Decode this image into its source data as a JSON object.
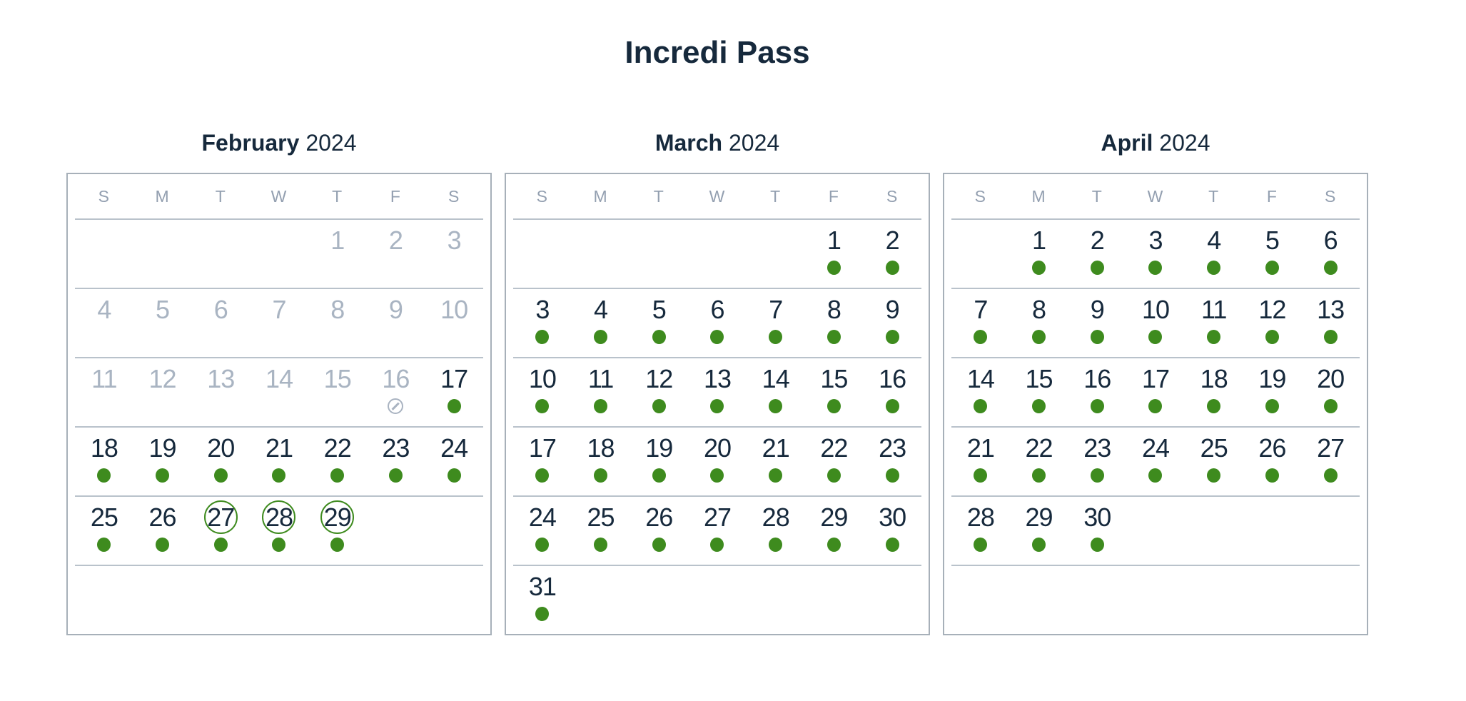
{
  "title": "Incredi Pass",
  "colors": {
    "available_green": "#3e8b1e",
    "text_navy": "#16293c",
    "disabled_gray": "#a9b4c2",
    "weekday_gray": "#93a0b0",
    "box_border_gray": "#a7b0b9",
    "divider_gray": "#b9c2cb"
  },
  "weekday_headers": [
    "S",
    "M",
    "T",
    "W",
    "T",
    "F",
    "S"
  ],
  "legend": {
    "available_marker": "green-dot",
    "blocked_marker": "no-availability-sign",
    "selected_marker": "green-ring"
  },
  "months": [
    {
      "name": "February",
      "year": "2024",
      "weeks": [
        [
          null,
          null,
          null,
          null,
          {
            "day": "1",
            "state": "disabled"
          },
          {
            "day": "2",
            "state": "disabled"
          },
          {
            "day": "3",
            "state": "disabled"
          }
        ],
        [
          {
            "day": "4",
            "state": "disabled"
          },
          {
            "day": "5",
            "state": "disabled"
          },
          {
            "day": "6",
            "state": "disabled"
          },
          {
            "day": "7",
            "state": "disabled"
          },
          {
            "day": "8",
            "state": "disabled"
          },
          {
            "day": "9",
            "state": "disabled"
          },
          {
            "day": "10",
            "state": "disabled"
          }
        ],
        [
          {
            "day": "11",
            "state": "disabled"
          },
          {
            "day": "12",
            "state": "disabled"
          },
          {
            "day": "13",
            "state": "disabled"
          },
          {
            "day": "14",
            "state": "disabled"
          },
          {
            "day": "15",
            "state": "disabled"
          },
          {
            "day": "16",
            "state": "blocked"
          },
          {
            "day": "17",
            "state": "available"
          }
        ],
        [
          {
            "day": "18",
            "state": "available"
          },
          {
            "day": "19",
            "state": "available"
          },
          {
            "day": "20",
            "state": "available"
          },
          {
            "day": "21",
            "state": "available"
          },
          {
            "day": "22",
            "state": "available"
          },
          {
            "day": "23",
            "state": "available"
          },
          {
            "day": "24",
            "state": "available"
          }
        ],
        [
          {
            "day": "25",
            "state": "available"
          },
          {
            "day": "26",
            "state": "available"
          },
          {
            "day": "27",
            "state": "circled"
          },
          {
            "day": "28",
            "state": "circled"
          },
          {
            "day": "29",
            "state": "circled"
          },
          null,
          null
        ],
        [
          null,
          null,
          null,
          null,
          null,
          null,
          null
        ]
      ]
    },
    {
      "name": "March",
      "year": "2024",
      "weeks": [
        [
          null,
          null,
          null,
          null,
          null,
          {
            "day": "1",
            "state": "available"
          },
          {
            "day": "2",
            "state": "available"
          }
        ],
        [
          {
            "day": "3",
            "state": "available"
          },
          {
            "day": "4",
            "state": "available"
          },
          {
            "day": "5",
            "state": "available"
          },
          {
            "day": "6",
            "state": "available"
          },
          {
            "day": "7",
            "state": "available"
          },
          {
            "day": "8",
            "state": "available"
          },
          {
            "day": "9",
            "state": "available"
          }
        ],
        [
          {
            "day": "10",
            "state": "available"
          },
          {
            "day": "11",
            "state": "available"
          },
          {
            "day": "12",
            "state": "available"
          },
          {
            "day": "13",
            "state": "available"
          },
          {
            "day": "14",
            "state": "available"
          },
          {
            "day": "15",
            "state": "available"
          },
          {
            "day": "16",
            "state": "available"
          }
        ],
        [
          {
            "day": "17",
            "state": "available"
          },
          {
            "day": "18",
            "state": "available"
          },
          {
            "day": "19",
            "state": "available"
          },
          {
            "day": "20",
            "state": "available"
          },
          {
            "day": "21",
            "state": "available"
          },
          {
            "day": "22",
            "state": "available"
          },
          {
            "day": "23",
            "state": "available"
          }
        ],
        [
          {
            "day": "24",
            "state": "available"
          },
          {
            "day": "25",
            "state": "available"
          },
          {
            "day": "26",
            "state": "available"
          },
          {
            "day": "27",
            "state": "available"
          },
          {
            "day": "28",
            "state": "available"
          },
          {
            "day": "29",
            "state": "available"
          },
          {
            "day": "30",
            "state": "available"
          }
        ],
        [
          {
            "day": "31",
            "state": "available"
          },
          null,
          null,
          null,
          null,
          null,
          null
        ]
      ]
    },
    {
      "name": "April",
      "year": "2024",
      "weeks": [
        [
          null,
          {
            "day": "1",
            "state": "available"
          },
          {
            "day": "2",
            "state": "available"
          },
          {
            "day": "3",
            "state": "available"
          },
          {
            "day": "4",
            "state": "available"
          },
          {
            "day": "5",
            "state": "available"
          },
          {
            "day": "6",
            "state": "available"
          }
        ],
        [
          {
            "day": "7",
            "state": "available"
          },
          {
            "day": "8",
            "state": "available"
          },
          {
            "day": "9",
            "state": "available"
          },
          {
            "day": "10",
            "state": "available"
          },
          {
            "day": "11",
            "state": "available"
          },
          {
            "day": "12",
            "state": "available"
          },
          {
            "day": "13",
            "state": "available"
          }
        ],
        [
          {
            "day": "14",
            "state": "available"
          },
          {
            "day": "15",
            "state": "available"
          },
          {
            "day": "16",
            "state": "available"
          },
          {
            "day": "17",
            "state": "available"
          },
          {
            "day": "18",
            "state": "available"
          },
          {
            "day": "19",
            "state": "available"
          },
          {
            "day": "20",
            "state": "available"
          }
        ],
        [
          {
            "day": "21",
            "state": "available"
          },
          {
            "day": "22",
            "state": "available"
          },
          {
            "day": "23",
            "state": "available"
          },
          {
            "day": "24",
            "state": "available"
          },
          {
            "day": "25",
            "state": "available"
          },
          {
            "day": "26",
            "state": "available"
          },
          {
            "day": "27",
            "state": "available"
          }
        ],
        [
          {
            "day": "28",
            "state": "available"
          },
          {
            "day": "29",
            "state": "available"
          },
          {
            "day": "30",
            "state": "available"
          },
          null,
          null,
          null,
          null
        ],
        [
          null,
          null,
          null,
          null,
          null,
          null,
          null
        ]
      ]
    }
  ]
}
